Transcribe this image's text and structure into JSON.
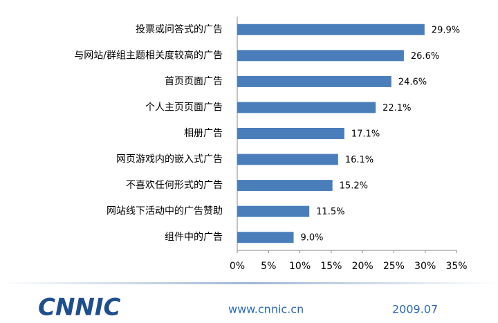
{
  "chart_data": {
    "type": "bar",
    "orientation": "horizontal",
    "categories": [
      "投票或问答式的广告",
      "与网站/群组主题相关度较高的广告",
      "首页页面广告",
      "个人主页页面广告",
      "相册广告",
      "网页游戏内的嵌入式广告",
      "不喜欢任何形式的广告",
      "网站线下活动中的广告赞助",
      "组件中的广告"
    ],
    "values": [
      29.9,
      26.6,
      24.6,
      22.1,
      17.1,
      16.1,
      15.2,
      11.5,
      9.0
    ],
    "value_labels": [
      "29.9%",
      "26.6%",
      "24.6%",
      "22.1%",
      "17.1%",
      "16.1%",
      "15.2%",
      "11.5%",
      "9.0%"
    ],
    "color": "#4a7ebb",
    "xlim": [
      0,
      35
    ],
    "xticks": [
      {
        "value": 0,
        "label": "0%"
      },
      {
        "value": 5,
        "label": "5%"
      },
      {
        "value": 10,
        "label": "10%"
      },
      {
        "value": 15,
        "label": "15%"
      },
      {
        "value": 20,
        "label": "20%"
      },
      {
        "value": 25,
        "label": "25%"
      },
      {
        "value": 30,
        "label": "30%"
      },
      {
        "value": 35,
        "label": "35%"
      }
    ]
  },
  "footer": {
    "logo": "CNNIC",
    "url": "www.cnnic.cn",
    "date": "2009.07"
  }
}
